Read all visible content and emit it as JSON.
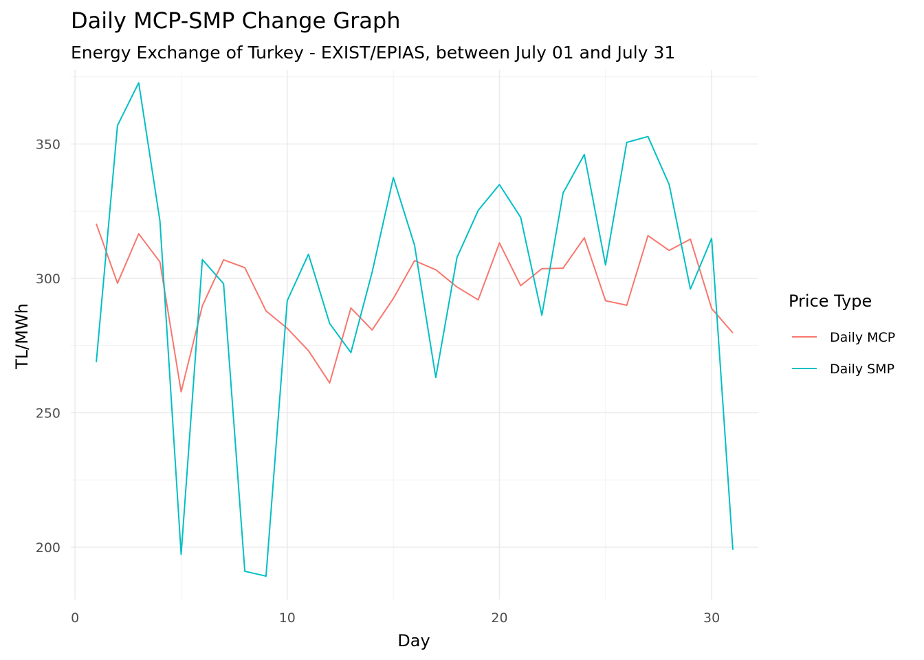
{
  "chart_data": {
    "type": "line",
    "title": "Daily MCP-SMP Change Graph",
    "subtitle": "Energy Exchange of Turkey - EXIST/EPIAS, between July 01 and July 31",
    "xlabel": "Day",
    "ylabel": "TL/MWh",
    "xlim": [
      -0.2,
      32.2
    ],
    "ylim": [
      180.5,
      377.5
    ],
    "x_ticks": [
      0,
      10,
      20,
      30
    ],
    "x_tick_labels": [
      "0",
      "10",
      "20",
      "30"
    ],
    "y_ticks": [
      200,
      250,
      300,
      350
    ],
    "y_tick_labels": [
      "200",
      "250",
      "300",
      "350"
    ],
    "grid": true,
    "legend": {
      "title": "Price Type",
      "position": "right"
    },
    "x": [
      1,
      2,
      3,
      4,
      5,
      6,
      7,
      8,
      9,
      10,
      11,
      12,
      13,
      14,
      15,
      16,
      17,
      18,
      19,
      20,
      21,
      22,
      23,
      24,
      25,
      26,
      27,
      28,
      29,
      30,
      31
    ],
    "series": [
      {
        "name": "Daily MCP",
        "color": "#F8766D",
        "values": [
          320.3,
          298.2,
          316.6,
          306.1,
          257.8,
          289.8,
          306.9,
          304.0,
          287.9,
          281.4,
          273.1,
          261.1,
          289.0,
          280.8,
          292.5,
          306.6,
          303.2,
          296.8,
          292.0,
          313.2,
          297.3,
          303.6,
          303.8,
          315.1,
          291.7,
          290.0,
          315.9,
          310.4,
          314.6,
          288.8,
          279.7
        ]
      },
      {
        "name": "Daily SMP",
        "color": "#00BFC4",
        "values": [
          268.8,
          356.9,
          372.8,
          321.4,
          197.3,
          307.0,
          298.0,
          191.0,
          189.2,
          291.7,
          309.0,
          283.2,
          272.4,
          302.3,
          337.5,
          312.3,
          263.1,
          307.8,
          325.3,
          334.9,
          322.7,
          286.3,
          331.8,
          346.1,
          305.0,
          350.6,
          352.8,
          334.9,
          296.0,
          314.9,
          199.0
        ]
      }
    ]
  }
}
